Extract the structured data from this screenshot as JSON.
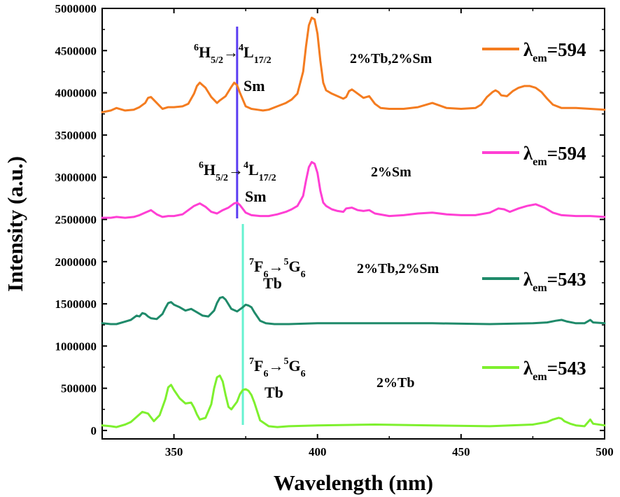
{
  "chart_data": {
    "type": "line",
    "xlabel": "Wavelength (nm)",
    "ylabel": "Intensity  (a.u.)",
    "xlim": [
      325,
      500
    ],
    "ylim": [
      -100000,
      5000000
    ],
    "xticks": [
      350,
      400,
      450,
      500
    ],
    "yticks": [
      0,
      500000,
      1000000,
      1500000,
      2000000,
      2500000,
      3000000,
      3500000,
      4000000,
      4500000,
      5000000
    ],
    "grid": false,
    "legend_position": "right",
    "series": [
      {
        "legend_symbol": "λ",
        "legend_sub": "em",
        "legend_value": "=594",
        "color": "#f47c20",
        "x": [
          325,
          328,
          330,
          333,
          336,
          338,
          340,
          341,
          342,
          344,
          346,
          348,
          350,
          353,
          355,
          357,
          358,
          359,
          361,
          363,
          365,
          366,
          368,
          370,
          371,
          372,
          373,
          375,
          377,
          379,
          381,
          383,
          386,
          389,
          391,
          393,
          395,
          396,
          397,
          398,
          399,
          400,
          401,
          402,
          403,
          405,
          407,
          409,
          410,
          411,
          412,
          414,
          416,
          418,
          420,
          422,
          425,
          430,
          435,
          440,
          445,
          450,
          455,
          457,
          459,
          461,
          462,
          463,
          464,
          466,
          468,
          470,
          472,
          474,
          476,
          478,
          480,
          482,
          485,
          490,
          495,
          500
        ],
        "y": [
          3770000,
          3790000,
          3820000,
          3790000,
          3800000,
          3830000,
          3880000,
          3940000,
          3950000,
          3880000,
          3810000,
          3830000,
          3830000,
          3840000,
          3870000,
          3990000,
          4080000,
          4120000,
          4060000,
          3950000,
          3880000,
          3910000,
          3960000,
          4070000,
          4120000,
          4090000,
          4000000,
          3840000,
          3810000,
          3800000,
          3790000,
          3800000,
          3840000,
          3880000,
          3920000,
          3990000,
          4250000,
          4550000,
          4800000,
          4890000,
          4870000,
          4700000,
          4380000,
          4120000,
          4030000,
          3990000,
          3960000,
          3930000,
          3950000,
          4020000,
          4040000,
          3990000,
          3940000,
          3960000,
          3870000,
          3820000,
          3810000,
          3810000,
          3830000,
          3880000,
          3820000,
          3810000,
          3820000,
          3860000,
          3950000,
          4010000,
          4030000,
          4010000,
          3970000,
          3960000,
          4020000,
          4060000,
          4080000,
          4080000,
          4060000,
          4010000,
          3930000,
          3860000,
          3820000,
          3820000,
          3810000,
          3800000
        ]
      },
      {
        "legend_symbol": "λ",
        "legend_sub": "em",
        "legend_value": "=594",
        "color": "#ff3fd4",
        "x": [
          325,
          328,
          330,
          333,
          336,
          338,
          340,
          342,
          344,
          346,
          348,
          350,
          353,
          355,
          357,
          359,
          361,
          363,
          365,
          367,
          369,
          371,
          372,
          373,
          375,
          377,
          380,
          383,
          386,
          389,
          391,
          393,
          395,
          396,
          397,
          398,
          399,
          400,
          401,
          402,
          403,
          405,
          407,
          409,
          410,
          412,
          414,
          416,
          418,
          420,
          425,
          430,
          435,
          440,
          445,
          450,
          455,
          460,
          463,
          465,
          467,
          470,
          473,
          476,
          479,
          482,
          485,
          490,
          495,
          500
        ],
        "y": [
          2520000,
          2520000,
          2530000,
          2520000,
          2530000,
          2550000,
          2580000,
          2610000,
          2560000,
          2530000,
          2540000,
          2540000,
          2560000,
          2610000,
          2660000,
          2690000,
          2650000,
          2590000,
          2570000,
          2610000,
          2640000,
          2690000,
          2700000,
          2670000,
          2580000,
          2550000,
          2540000,
          2540000,
          2560000,
          2590000,
          2620000,
          2660000,
          2780000,
          2960000,
          3120000,
          3180000,
          3160000,
          3050000,
          2840000,
          2700000,
          2660000,
          2620000,
          2600000,
          2590000,
          2630000,
          2640000,
          2610000,
          2600000,
          2610000,
          2570000,
          2540000,
          2550000,
          2570000,
          2580000,
          2560000,
          2550000,
          2550000,
          2580000,
          2630000,
          2620000,
          2590000,
          2630000,
          2660000,
          2680000,
          2640000,
          2580000,
          2550000,
          2540000,
          2540000,
          2530000
        ]
      },
      {
        "legend_symbol": "λ",
        "legend_sub": "em",
        "legend_value": "=543",
        "color": "#1f8a6a",
        "x": [
          325,
          328,
          330,
          333,
          335,
          337,
          338,
          339,
          340,
          341,
          342,
          344,
          346,
          347,
          348,
          349,
          350,
          352,
          354,
          356,
          358,
          360,
          362,
          364,
          365,
          366,
          367,
          368,
          370,
          372,
          374,
          375,
          376,
          377,
          378,
          380,
          382,
          385,
          390,
          400,
          420,
          440,
          460,
          475,
          480,
          483,
          485,
          487,
          490,
          493,
          494,
          495,
          496,
          500
        ],
        "y": [
          1270000,
          1260000,
          1260000,
          1290000,
          1310000,
          1360000,
          1350000,
          1390000,
          1380000,
          1350000,
          1330000,
          1320000,
          1380000,
          1450000,
          1510000,
          1520000,
          1490000,
          1460000,
          1420000,
          1440000,
          1400000,
          1360000,
          1350000,
          1420000,
          1510000,
          1570000,
          1580000,
          1550000,
          1440000,
          1410000,
          1460000,
          1490000,
          1480000,
          1460000,
          1400000,
          1300000,
          1270000,
          1260000,
          1260000,
          1270000,
          1270000,
          1270000,
          1260000,
          1270000,
          1280000,
          1300000,
          1310000,
          1290000,
          1270000,
          1270000,
          1290000,
          1310000,
          1280000,
          1270000
        ]
      },
      {
        "legend_symbol": "λ",
        "legend_sub": "em",
        "legend_value": "=543",
        "color": "#7ef02e",
        "x": [
          325,
          328,
          330,
          333,
          335,
          337,
          338,
          339,
          340,
          341,
          343,
          345,
          347,
          348,
          349,
          350,
          352,
          354,
          356,
          357,
          358,
          359,
          361,
          363,
          364,
          365,
          366,
          367,
          368,
          369,
          370,
          372,
          373,
          374,
          375,
          376,
          377,
          378,
          380,
          383,
          386,
          390,
          400,
          420,
          440,
          460,
          475,
          480,
          482,
          484,
          485,
          486,
          488,
          490,
          493,
          494,
          495,
          496,
          500
        ],
        "y": [
          60000,
          50000,
          40000,
          70000,
          100000,
          160000,
          190000,
          220000,
          210000,
          200000,
          110000,
          180000,
          370000,
          510000,
          540000,
          480000,
          380000,
          320000,
          330000,
          270000,
          190000,
          130000,
          150000,
          310000,
          500000,
          630000,
          650000,
          580000,
          420000,
          280000,
          250000,
          340000,
          430000,
          480000,
          490000,
          470000,
          420000,
          330000,
          120000,
          50000,
          40000,
          50000,
          60000,
          70000,
          60000,
          50000,
          70000,
          100000,
          130000,
          150000,
          140000,
          110000,
          80000,
          60000,
          50000,
          90000,
          130000,
          80000,
          60000
        ]
      }
    ],
    "sample_labels": [
      "2%Tb,2%Sm",
      "2%Sm",
      "2%Tb,2%Sm",
      "2%Tb"
    ],
    "annotations": [
      {
        "pre": "6",
        "main1": "H",
        "sub1": "5/2",
        "arrow": "→",
        "sup2": "4",
        "main2": "L",
        "sub2": "17/2",
        "ion": "Sm"
      },
      {
        "pre": "6",
        "main1": "H",
        "sub1": "5/2",
        "arrow": "→",
        "sup2": "4",
        "main2": "L",
        "sub2": "17/2",
        "ion": "Sm"
      },
      {
        "pre": "7",
        "main1": "F",
        "sub1": "6",
        "arrow": "→",
        "sup2": "5",
        "main2": "G",
        "sub2": "6",
        "ion": "Tb"
      },
      {
        "pre": "7",
        "main1": "F",
        "sub1": "6",
        "arrow": "→",
        "sup2": "5",
        "main2": "G",
        "sub2": "6",
        "ion": "Tb"
      }
    ],
    "vertical_markers": [
      {
        "x": 372,
        "color": "#5a3cf2"
      },
      {
        "x": 374,
        "color": "#66f2d0"
      }
    ]
  }
}
